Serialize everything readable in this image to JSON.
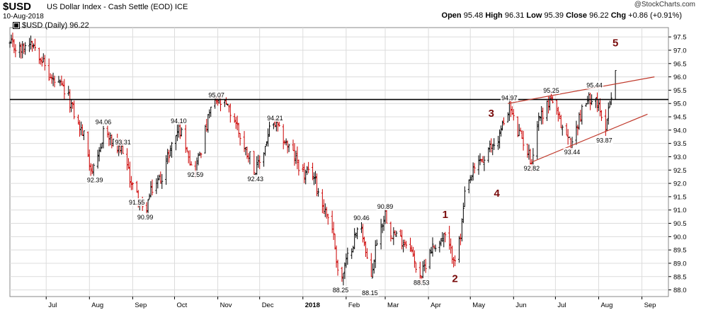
{
  "header": {
    "symbol": "$USD",
    "name": "US Dollar Index - Cash Settle (EOD)",
    "exchange": "ICE",
    "date": "10-Aug-2018",
    "copyright": "@StockCharts.com",
    "ohlc": {
      "open_label": "Open",
      "open": "95.48",
      "high_label": "High",
      "high": "96.31",
      "low_label": "Low",
      "low": "95.39",
      "close_label": "Close",
      "close": "96.22",
      "chg_label": "Chg",
      "chg": "+0.86 (+0.91%)"
    }
  },
  "legend": {
    "text": "$USD (Daily) 96.22"
  },
  "chart_data": {
    "type": "line",
    "subtype": "ohlc-bars",
    "title": "$USD US Dollar Index - Cash Settle (EOD) ICE",
    "ylabel": "",
    "ylim": [
      87.75,
      97.85
    ],
    "y_ticks": [
      "97.5",
      "97.0",
      "96.5",
      "96.0",
      "95.5",
      "95.0",
      "94.5",
      "94.0",
      "93.5",
      "93.0",
      "92.5",
      "92.0",
      "91.5",
      "91.0",
      "90.5",
      "90.0",
      "89.5",
      "89.0",
      "88.5",
      "88.0"
    ],
    "x_ticks": [
      "Jul",
      "Aug",
      "Sep",
      "Oct",
      "Nov",
      "Dec",
      "2018",
      "Feb",
      "Mar",
      "Apr",
      "May",
      "Jun",
      "Jul",
      "Aug",
      "Sep"
    ],
    "x_range": [
      "2017-06-05",
      "2018-09-20"
    ],
    "scale": "linear",
    "grid": true,
    "series": [
      {
        "name": "$USD (Daily)",
        "path": [
          [
            "2017-06-05",
            97.2
          ],
          [
            "2017-06-13",
            97.0
          ],
          [
            "2017-06-20",
            97.4
          ],
          [
            "2017-06-27",
            96.8
          ],
          [
            "2017-07-03",
            96.0
          ],
          [
            "2017-07-07",
            95.8
          ],
          [
            "2017-07-12",
            95.6
          ],
          [
            "2017-07-17",
            95.2
          ],
          [
            "2017-07-24",
            94.2
          ],
          [
            "2017-07-28",
            93.8
          ],
          [
            "2017-08-02",
            92.6
          ],
          [
            "2017-08-05",
            92.39
          ],
          [
            "2017-08-09",
            93.3
          ],
          [
            "2017-08-11",
            94.06
          ],
          [
            "2017-08-16",
            93.6
          ],
          [
            "2017-08-22",
            93.2
          ],
          [
            "2017-08-25",
            93.31
          ],
          [
            "2017-08-29",
            92.4
          ],
          [
            "2017-09-01",
            91.9
          ],
          [
            "2017-09-04",
            91.55
          ],
          [
            "2017-09-08",
            91.0
          ],
          [
            "2017-09-10",
            90.99
          ],
          [
            "2017-09-15",
            91.8
          ],
          [
            "2017-09-22",
            92.3
          ],
          [
            "2017-09-28",
            93.3
          ],
          [
            "2017-10-04",
            94.1
          ],
          [
            "2017-10-10",
            93.4
          ],
          [
            "2017-10-13",
            92.6
          ],
          [
            "2017-10-16",
            92.59
          ],
          [
            "2017-10-20",
            93.3
          ],
          [
            "2017-10-27",
            94.8
          ],
          [
            "2017-10-31",
            95.07
          ],
          [
            "2017-11-07",
            94.9
          ],
          [
            "2017-11-14",
            94.3
          ],
          [
            "2017-11-20",
            93.3
          ],
          [
            "2017-11-25",
            93.0
          ],
          [
            "2017-11-28",
            92.43
          ],
          [
            "2017-12-04",
            93.2
          ],
          [
            "2017-12-08",
            94.0
          ],
          [
            "2017-12-12",
            94.21
          ],
          [
            "2017-12-19",
            93.6
          ],
          [
            "2017-12-26",
            93.0
          ],
          [
            "2018-01-02",
            92.3
          ],
          [
            "2018-01-08",
            92.4
          ],
          [
            "2018-01-15",
            91.2
          ],
          [
            "2018-01-22",
            90.4
          ],
          [
            "2018-01-26",
            88.8
          ],
          [
            "2018-01-28",
            88.25
          ],
          [
            "2018-02-02",
            89.2
          ],
          [
            "2018-02-08",
            90.1
          ],
          [
            "2018-02-12",
            90.46
          ],
          [
            "2018-02-16",
            89.0
          ],
          [
            "2018-02-18",
            88.15
          ],
          [
            "2018-02-23",
            89.9
          ],
          [
            "2018-03-01",
            90.89
          ],
          [
            "2018-03-05",
            90.2
          ],
          [
            "2018-03-12",
            89.9
          ],
          [
            "2018-03-19",
            89.7
          ],
          [
            "2018-03-22",
            89.0
          ],
          [
            "2018-03-27",
            88.53
          ],
          [
            "2018-04-02",
            89.5
          ],
          [
            "2018-04-08",
            89.8
          ],
          [
            "2018-04-13",
            90.0
          ],
          [
            "2018-04-17",
            89.4
          ],
          [
            "2018-04-21",
            89.2
          ],
          [
            "2018-04-24",
            90.0
          ],
          [
            "2018-04-27",
            91.5
          ],
          [
            "2018-05-02",
            92.3
          ],
          [
            "2018-05-08",
            92.9
          ],
          [
            "2018-05-12",
            92.8
          ],
          [
            "2018-05-15",
            93.3
          ],
          [
            "2018-05-21",
            93.7
          ],
          [
            "2018-05-25",
            94.3
          ],
          [
            "2018-05-29",
            94.97
          ],
          [
            "2018-06-03",
            94.0
          ],
          [
            "2018-06-08",
            93.6
          ],
          [
            "2018-06-14",
            92.82
          ],
          [
            "2018-06-19",
            94.5
          ],
          [
            "2018-06-23",
            94.7
          ],
          [
            "2018-06-28",
            95.25
          ],
          [
            "2018-07-03",
            94.4
          ],
          [
            "2018-07-09",
            93.8
          ],
          [
            "2018-07-13",
            93.44
          ],
          [
            "2018-07-18",
            94.5
          ],
          [
            "2018-07-23",
            95.0
          ],
          [
            "2018-07-29",
            95.44
          ],
          [
            "2018-08-02",
            94.6
          ],
          [
            "2018-08-05",
            93.87
          ],
          [
            "2018-08-08",
            94.8
          ],
          [
            "2018-08-10",
            95.4
          ],
          [
            "2018-08-13",
            96.22
          ]
        ]
      }
    ],
    "horizontal_line": {
      "value": 95.15
    },
    "trendlines": [
      {
        "from": [
          "2018-05-28",
          95.0
        ],
        "to": [
          "2018-09-10",
          96.0
        ]
      },
      {
        "from": [
          "2018-06-14",
          92.8
        ],
        "to": [
          "2018-09-05",
          94.6
        ]
      }
    ],
    "price_annotations": [
      {
        "date": "2017-08-05",
        "value": 92.39,
        "label": "92.39",
        "pos": "below"
      },
      {
        "date": "2017-08-11",
        "value": 94.06,
        "label": "94.06",
        "pos": "above"
      },
      {
        "date": "2017-08-25",
        "value": 93.31,
        "label": "93.31",
        "pos": "above"
      },
      {
        "date": "2017-09-04",
        "value": 91.55,
        "label": "91.55",
        "pos": "below"
      },
      {
        "date": "2017-09-10",
        "value": 90.99,
        "label": "90.99",
        "pos": "below"
      },
      {
        "date": "2017-10-04",
        "value": 94.1,
        "label": "94.10",
        "pos": "above"
      },
      {
        "date": "2017-10-16",
        "value": 92.59,
        "label": "92.59",
        "pos": "below"
      },
      {
        "date": "2017-10-31",
        "value": 95.07,
        "label": "95.07",
        "pos": "above"
      },
      {
        "date": "2017-11-28",
        "value": 92.43,
        "label": "92.43",
        "pos": "below"
      },
      {
        "date": "2017-12-12",
        "value": 94.21,
        "label": "94.21",
        "pos": "above"
      },
      {
        "date": "2018-01-28",
        "value": 88.25,
        "label": "88.25",
        "pos": "below"
      },
      {
        "date": "2018-02-12",
        "value": 90.46,
        "label": "90.46",
        "pos": "above"
      },
      {
        "date": "2018-02-18",
        "value": 88.15,
        "label": "88.15",
        "pos": "below"
      },
      {
        "date": "2018-03-01",
        "value": 90.89,
        "label": "90.89",
        "pos": "above"
      },
      {
        "date": "2018-03-27",
        "value": 88.53,
        "label": "88.53",
        "pos": "below"
      },
      {
        "date": "2018-05-29",
        "value": 94.97,
        "label": "94.97",
        "pos": "above"
      },
      {
        "date": "2018-06-14",
        "value": 92.82,
        "label": "92.82",
        "pos": "below"
      },
      {
        "date": "2018-06-28",
        "value": 95.25,
        "label": "95.25",
        "pos": "above"
      },
      {
        "date": "2018-07-13",
        "value": 93.44,
        "label": "93.44",
        "pos": "below"
      },
      {
        "date": "2018-07-29",
        "value": 95.44,
        "label": "95.44",
        "pos": "above"
      },
      {
        "date": "2018-08-05",
        "value": 93.87,
        "label": "93.87",
        "pos": "below"
      }
    ],
    "wave_labels": [
      {
        "label": "1",
        "date": "2018-04-13",
        "value": 90.7
      },
      {
        "label": "2",
        "date": "2018-04-20",
        "value": 88.3
      },
      {
        "label": "3",
        "date": "2018-05-16",
        "value": 94.5
      },
      {
        "label": "4",
        "date": "2018-05-20",
        "value": 91.5
      },
      {
        "label": "5",
        "date": "2018-08-13",
        "value": 97.15
      }
    ]
  },
  "colors": {
    "background": "#ffffff",
    "grid": "#dcdcdc",
    "bar_up": "#000000",
    "bar_down": "#cc0000",
    "resistance_line": "#000000",
    "trendline": "#c0392b",
    "wave_label": "#7a0c0c"
  }
}
